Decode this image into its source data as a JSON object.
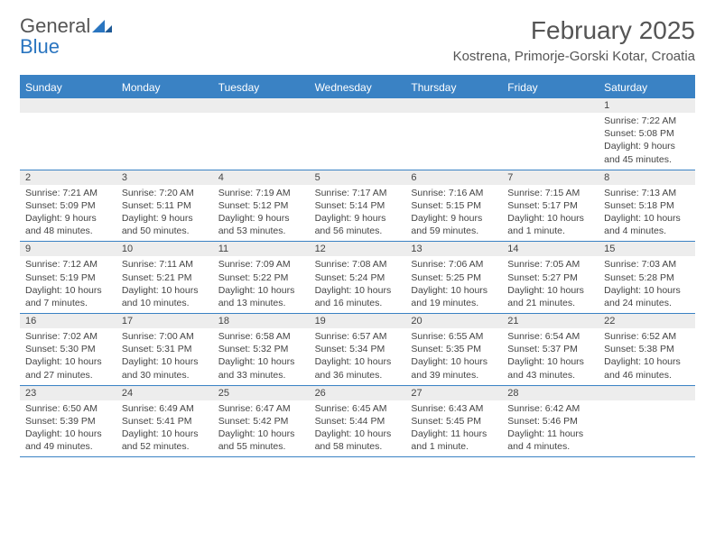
{
  "logo": {
    "word1": "General",
    "word2": "Blue",
    "text_color": "#555555",
    "accent_color": "#2a75c0"
  },
  "title": "February 2025",
  "location": "Kostrena, Primorje-Gorski Kotar, Croatia",
  "colors": {
    "header_bar": "#3a82c4",
    "header_text": "#ffffff",
    "daynum_bg": "#ededed",
    "text": "#444444",
    "rule": "#3a82c4",
    "background": "#ffffff"
  },
  "typography": {
    "title_fontsize": 28,
    "location_fontsize": 15,
    "header_fontsize": 12,
    "cell_fontsize": 10.5
  },
  "day_names": [
    "Sunday",
    "Monday",
    "Tuesday",
    "Wednesday",
    "Thursday",
    "Friday",
    "Saturday"
  ],
  "weeks": [
    [
      {
        "day": "",
        "sunrise": "",
        "sunset": "",
        "daylight": ""
      },
      {
        "day": "",
        "sunrise": "",
        "sunset": "",
        "daylight": ""
      },
      {
        "day": "",
        "sunrise": "",
        "sunset": "",
        "daylight": ""
      },
      {
        "day": "",
        "sunrise": "",
        "sunset": "",
        "daylight": ""
      },
      {
        "day": "",
        "sunrise": "",
        "sunset": "",
        "daylight": ""
      },
      {
        "day": "",
        "sunrise": "",
        "sunset": "",
        "daylight": ""
      },
      {
        "day": "1",
        "sunrise": "Sunrise: 7:22 AM",
        "sunset": "Sunset: 5:08 PM",
        "daylight": "Daylight: 9 hours and 45 minutes."
      }
    ],
    [
      {
        "day": "2",
        "sunrise": "Sunrise: 7:21 AM",
        "sunset": "Sunset: 5:09 PM",
        "daylight": "Daylight: 9 hours and 48 minutes."
      },
      {
        "day": "3",
        "sunrise": "Sunrise: 7:20 AM",
        "sunset": "Sunset: 5:11 PM",
        "daylight": "Daylight: 9 hours and 50 minutes."
      },
      {
        "day": "4",
        "sunrise": "Sunrise: 7:19 AM",
        "sunset": "Sunset: 5:12 PM",
        "daylight": "Daylight: 9 hours and 53 minutes."
      },
      {
        "day": "5",
        "sunrise": "Sunrise: 7:17 AM",
        "sunset": "Sunset: 5:14 PM",
        "daylight": "Daylight: 9 hours and 56 minutes."
      },
      {
        "day": "6",
        "sunrise": "Sunrise: 7:16 AM",
        "sunset": "Sunset: 5:15 PM",
        "daylight": "Daylight: 9 hours and 59 minutes."
      },
      {
        "day": "7",
        "sunrise": "Sunrise: 7:15 AM",
        "sunset": "Sunset: 5:17 PM",
        "daylight": "Daylight: 10 hours and 1 minute."
      },
      {
        "day": "8",
        "sunrise": "Sunrise: 7:13 AM",
        "sunset": "Sunset: 5:18 PM",
        "daylight": "Daylight: 10 hours and 4 minutes."
      }
    ],
    [
      {
        "day": "9",
        "sunrise": "Sunrise: 7:12 AM",
        "sunset": "Sunset: 5:19 PM",
        "daylight": "Daylight: 10 hours and 7 minutes."
      },
      {
        "day": "10",
        "sunrise": "Sunrise: 7:11 AM",
        "sunset": "Sunset: 5:21 PM",
        "daylight": "Daylight: 10 hours and 10 minutes."
      },
      {
        "day": "11",
        "sunrise": "Sunrise: 7:09 AM",
        "sunset": "Sunset: 5:22 PM",
        "daylight": "Daylight: 10 hours and 13 minutes."
      },
      {
        "day": "12",
        "sunrise": "Sunrise: 7:08 AM",
        "sunset": "Sunset: 5:24 PM",
        "daylight": "Daylight: 10 hours and 16 minutes."
      },
      {
        "day": "13",
        "sunrise": "Sunrise: 7:06 AM",
        "sunset": "Sunset: 5:25 PM",
        "daylight": "Daylight: 10 hours and 19 minutes."
      },
      {
        "day": "14",
        "sunrise": "Sunrise: 7:05 AM",
        "sunset": "Sunset: 5:27 PM",
        "daylight": "Daylight: 10 hours and 21 minutes."
      },
      {
        "day": "15",
        "sunrise": "Sunrise: 7:03 AM",
        "sunset": "Sunset: 5:28 PM",
        "daylight": "Daylight: 10 hours and 24 minutes."
      }
    ],
    [
      {
        "day": "16",
        "sunrise": "Sunrise: 7:02 AM",
        "sunset": "Sunset: 5:30 PM",
        "daylight": "Daylight: 10 hours and 27 minutes."
      },
      {
        "day": "17",
        "sunrise": "Sunrise: 7:00 AM",
        "sunset": "Sunset: 5:31 PM",
        "daylight": "Daylight: 10 hours and 30 minutes."
      },
      {
        "day": "18",
        "sunrise": "Sunrise: 6:58 AM",
        "sunset": "Sunset: 5:32 PM",
        "daylight": "Daylight: 10 hours and 33 minutes."
      },
      {
        "day": "19",
        "sunrise": "Sunrise: 6:57 AM",
        "sunset": "Sunset: 5:34 PM",
        "daylight": "Daylight: 10 hours and 36 minutes."
      },
      {
        "day": "20",
        "sunrise": "Sunrise: 6:55 AM",
        "sunset": "Sunset: 5:35 PM",
        "daylight": "Daylight: 10 hours and 39 minutes."
      },
      {
        "day": "21",
        "sunrise": "Sunrise: 6:54 AM",
        "sunset": "Sunset: 5:37 PM",
        "daylight": "Daylight: 10 hours and 43 minutes."
      },
      {
        "day": "22",
        "sunrise": "Sunrise: 6:52 AM",
        "sunset": "Sunset: 5:38 PM",
        "daylight": "Daylight: 10 hours and 46 minutes."
      }
    ],
    [
      {
        "day": "23",
        "sunrise": "Sunrise: 6:50 AM",
        "sunset": "Sunset: 5:39 PM",
        "daylight": "Daylight: 10 hours and 49 minutes."
      },
      {
        "day": "24",
        "sunrise": "Sunrise: 6:49 AM",
        "sunset": "Sunset: 5:41 PM",
        "daylight": "Daylight: 10 hours and 52 minutes."
      },
      {
        "day": "25",
        "sunrise": "Sunrise: 6:47 AM",
        "sunset": "Sunset: 5:42 PM",
        "daylight": "Daylight: 10 hours and 55 minutes."
      },
      {
        "day": "26",
        "sunrise": "Sunrise: 6:45 AM",
        "sunset": "Sunset: 5:44 PM",
        "daylight": "Daylight: 10 hours and 58 minutes."
      },
      {
        "day": "27",
        "sunrise": "Sunrise: 6:43 AM",
        "sunset": "Sunset: 5:45 PM",
        "daylight": "Daylight: 11 hours and 1 minute."
      },
      {
        "day": "28",
        "sunrise": "Sunrise: 6:42 AM",
        "sunset": "Sunset: 5:46 PM",
        "daylight": "Daylight: 11 hours and 4 minutes."
      },
      {
        "day": "",
        "sunrise": "",
        "sunset": "",
        "daylight": ""
      }
    ]
  ]
}
